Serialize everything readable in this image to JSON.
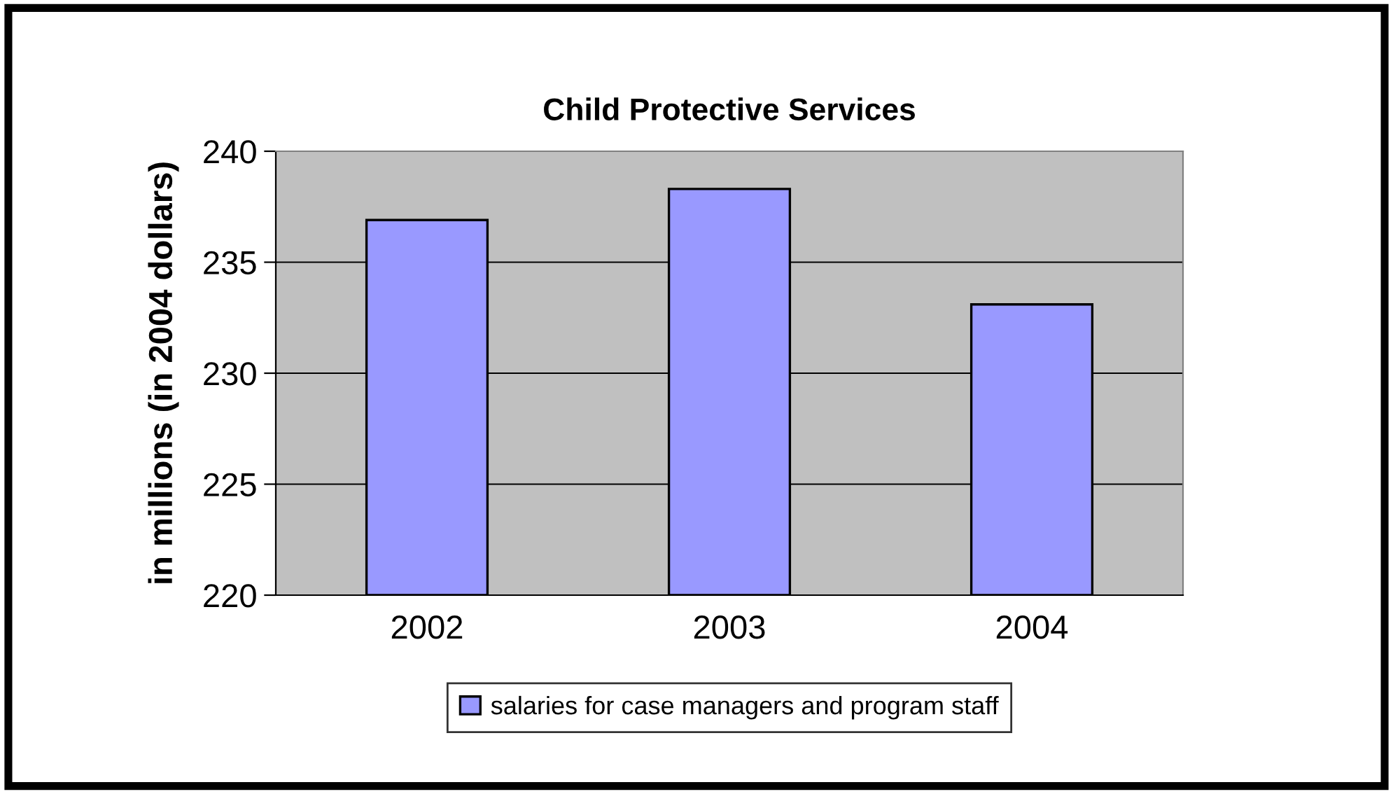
{
  "chart_data": {
    "type": "bar",
    "title": "Child Protective Services",
    "ylabel": "in millions (in 2004 dollars)",
    "categories": [
      "2002",
      "2003",
      "2004"
    ],
    "series": [
      {
        "name": "salaries for case managers and program staff",
        "color": "#9999ff",
        "values": [
          236.9,
          238.3,
          233.1
        ]
      }
    ],
    "ylim": [
      220,
      240
    ],
    "yticks": [
      220,
      225,
      230,
      235,
      240
    ],
    "grid": "y",
    "legend": "bottom"
  }
}
